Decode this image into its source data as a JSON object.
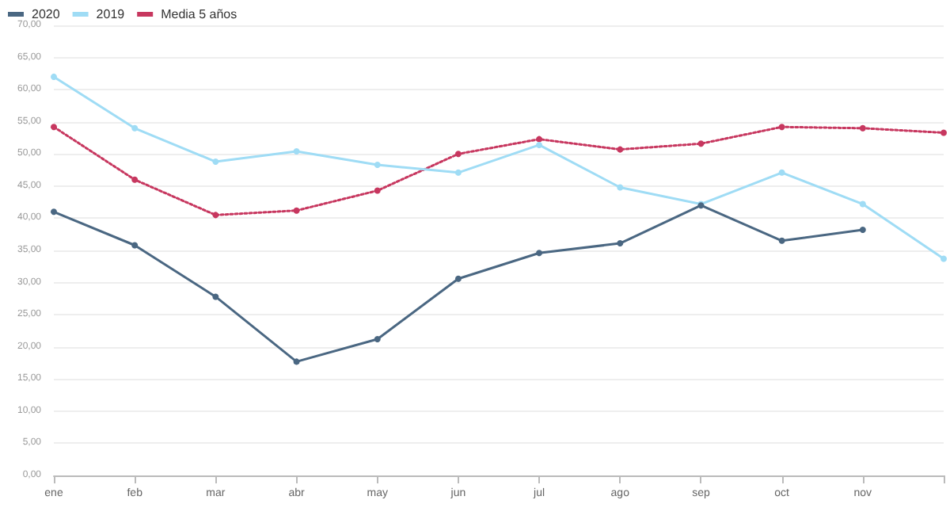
{
  "chart_data": {
    "type": "line",
    "categories": [
      "ene",
      "feb",
      "mar",
      "abr",
      "may",
      "jun",
      "jul",
      "ago",
      "sep",
      "oct",
      "nov",
      null
    ],
    "series": [
      {
        "name": "2020",
        "color": "#4a6782",
        "values": [
          41.0,
          35.8,
          27.8,
          17.7,
          21.2,
          30.6,
          34.6,
          36.1,
          42.0,
          36.5,
          38.2,
          null
        ]
      },
      {
        "name": "2019",
        "color": "#9fdcf5",
        "values": [
          62.0,
          54.0,
          48.8,
          50.4,
          48.3,
          47.1,
          51.4,
          44.8,
          42.2,
          47.1,
          42.2,
          33.7
        ]
      },
      {
        "name": "Media 5 años",
        "color": "#c7375f",
        "line_style": "dotted",
        "values": [
          54.2,
          46.0,
          40.5,
          41.2,
          44.3,
          50.0,
          52.3,
          50.7,
          51.6,
          54.2,
          54.0,
          53.3
        ]
      }
    ],
    "ylim": [
      0,
      70
    ],
    "yticks": [
      {
        "value": 0,
        "label": "0,00"
      },
      {
        "value": 5,
        "label": "5,00"
      },
      {
        "value": 10,
        "label": "10,00"
      },
      {
        "value": 15,
        "label": "15,00"
      },
      {
        "value": 20,
        "label": "20,00"
      },
      {
        "value": 25,
        "label": "25,00"
      },
      {
        "value": 30,
        "label": "30,00"
      },
      {
        "value": 35,
        "label": "35,00"
      },
      {
        "value": 40,
        "label": "40,00"
      },
      {
        "value": 45,
        "label": "45,00"
      },
      {
        "value": 50,
        "label": "50,00"
      },
      {
        "value": 55,
        "label": "55,00"
      },
      {
        "value": 60,
        "label": "60,00"
      },
      {
        "value": 65,
        "label": "65,00"
      },
      {
        "value": 70,
        "label": "70,00"
      }
    ],
    "grid": "y",
    "legend": "top left",
    "marker": "circle",
    "line_style": "solid"
  }
}
